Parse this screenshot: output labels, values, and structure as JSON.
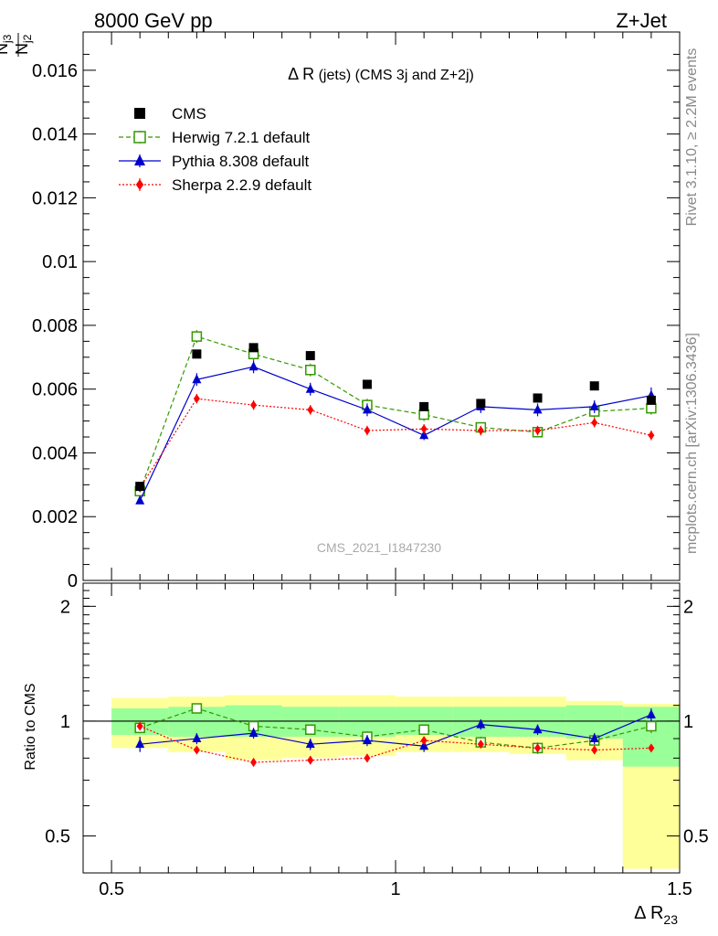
{
  "header": {
    "left": "8000 GeV pp",
    "right": "Z+Jet"
  },
  "ylabel_top": {
    "num": "N",
    "num_sub": "j3",
    "den": "N",
    "den_sub": "j2"
  },
  "ylabel_bottom": "Ratio to CMS",
  "xlabel": {
    "main": "Δ R",
    "sub": "23"
  },
  "plot_title": {
    "delta": "Δ R",
    "rest": " (jets) (CMS 3j and Z+2j)"
  },
  "watermark": "CMS_2021_I1847230",
  "side_text": {
    "rivet": "Rivet 3.1.10, ≥ 2.2M events",
    "mcplots": "mcplots.cern.ch [arXiv:1306.3436]"
  },
  "chart_data": {
    "type": "scatter",
    "x": [
      0.55,
      0.65,
      0.75,
      0.85,
      0.95,
      1.05,
      1.15,
      1.25,
      1.35,
      1.45
    ],
    "xlim": [
      0.45,
      1.5
    ],
    "ylim_main": [
      0,
      0.0172
    ],
    "ylim_ratio": [
      0.4,
      2.3
    ],
    "ratio_log_scale": true,
    "xticks": [
      {
        "v": 0.5,
        "label": "0.5"
      },
      {
        "v": 1.0,
        "label": "1"
      },
      {
        "v": 1.5,
        "label": "1.5"
      }
    ],
    "yticks_main": [
      {
        "v": 0,
        "label": "0"
      },
      {
        "v": 0.002,
        "label": "0.002"
      },
      {
        "v": 0.004,
        "label": "0.004"
      },
      {
        "v": 0.006,
        "label": "0.006"
      },
      {
        "v": 0.008,
        "label": "0.008"
      },
      {
        "v": 0.01,
        "label": "0.01"
      },
      {
        "v": 0.012,
        "label": "0.012"
      },
      {
        "v": 0.014,
        "label": "0.014"
      },
      {
        "v": 0.016,
        "label": "0.016"
      }
    ],
    "yticks_ratio": [
      {
        "v": 0.5,
        "label": "0.5"
      },
      {
        "v": 1,
        "label": "1"
      },
      {
        "v": 2,
        "label": "2"
      }
    ],
    "data_series": {
      "name": "CMS",
      "values": [
        0.00295,
        0.0071,
        0.0073,
        0.00705,
        0.00615,
        0.00545,
        0.00555,
        0.00572,
        0.0061,
        0.00565
      ]
    },
    "mc_series": [
      {
        "name": "Herwig 7.2.1 default",
        "color": "#339900",
        "marker": "open-square",
        "line": "dashed",
        "values": [
          0.0028,
          0.00765,
          0.0071,
          0.0066,
          0.0055,
          0.0052,
          0.0048,
          0.00465,
          0.0053,
          0.0054
        ],
        "errors": [
          0.0001,
          0.0002,
          0.0002,
          0.0002,
          0.0002,
          0.0002,
          0.00015,
          0.00015,
          0.0002,
          0.0002
        ],
        "ratio": [
          0.96,
          1.08,
          0.97,
          0.95,
          0.91,
          0.95,
          0.88,
          0.85,
          0.89,
          0.97
        ],
        "ratio_errors": [
          0.03,
          0.03,
          0.03,
          0.03,
          0.03,
          0.03,
          0.03,
          0.03,
          0.03,
          0.04
        ]
      },
      {
        "name": "Pythia 8.308 default",
        "color": "#0000cc",
        "marker": "filled-triangle",
        "line": "solid",
        "values": [
          0.0025,
          0.0063,
          0.0067,
          0.006,
          0.00535,
          0.00455,
          0.00545,
          0.00535,
          0.00545,
          0.0058
        ],
        "errors": [
          0.0001,
          0.0002,
          0.0002,
          0.0002,
          0.0002,
          0.00015,
          0.0002,
          0.0002,
          0.0002,
          0.00025
        ],
        "ratio": [
          0.87,
          0.9,
          0.93,
          0.87,
          0.89,
          0.86,
          0.98,
          0.95,
          0.9,
          1.04
        ],
        "ratio_errors": [
          0.04,
          0.03,
          0.03,
          0.03,
          0.03,
          0.03,
          0.03,
          0.03,
          0.03,
          0.04
        ]
      },
      {
        "name": "Sherpa 2.2.9 default",
        "color": "#ff0000",
        "marker": "filled-diamond",
        "line": "dotted",
        "values": [
          0.0029,
          0.0057,
          0.0055,
          0.00535,
          0.0047,
          0.00475,
          0.0047,
          0.0047,
          0.00495,
          0.00455
        ],
        "errors": [
          0.0001,
          0.00015,
          0.00015,
          0.00015,
          0.00015,
          0.00015,
          0.00015,
          0.00015,
          0.00015,
          0.00015
        ],
        "ratio": [
          0.97,
          0.84,
          0.78,
          0.79,
          0.8,
          0.89,
          0.87,
          0.85,
          0.84,
          0.85
        ],
        "ratio_errors": [
          0.02,
          0.02,
          0.02,
          0.02,
          0.02,
          0.02,
          0.02,
          0.02,
          0.02,
          0.02
        ]
      }
    ],
    "ratio_bands": [
      {
        "x0": 0.5,
        "x1": 0.6,
        "green": [
          0.92,
          1.08
        ],
        "yellow": [
          0.85,
          1.15
        ]
      },
      {
        "x0": 0.6,
        "x1": 0.7,
        "green": [
          0.91,
          1.09
        ],
        "yellow": [
          0.83,
          1.16
        ]
      },
      {
        "x0": 0.7,
        "x1": 0.8,
        "green": [
          0.91,
          1.1
        ],
        "yellow": [
          0.79,
          1.17
        ]
      },
      {
        "x0": 0.8,
        "x1": 0.9,
        "green": [
          0.91,
          1.09
        ],
        "yellow": [
          0.8,
          1.17
        ]
      },
      {
        "x0": 0.9,
        "x1": 1.0,
        "green": [
          0.91,
          1.09
        ],
        "yellow": [
          0.81,
          1.17
        ]
      },
      {
        "x0": 1.0,
        "x1": 1.1,
        "green": [
          0.92,
          1.09
        ],
        "yellow": [
          0.83,
          1.16
        ]
      },
      {
        "x0": 1.1,
        "x1": 1.2,
        "green": [
          0.91,
          1.09
        ],
        "yellow": [
          0.83,
          1.16
        ]
      },
      {
        "x0": 1.2,
        "x1": 1.3,
        "green": [
          0.91,
          1.09
        ],
        "yellow": [
          0.82,
          1.16
        ]
      },
      {
        "x0": 1.3,
        "x1": 1.4,
        "green": [
          0.9,
          1.1
        ],
        "yellow": [
          0.79,
          1.13
        ]
      },
      {
        "x0": 1.4,
        "x1": 1.5,
        "green": [
          0.76,
          1.09
        ],
        "yellow": [
          0.41,
          1.11
        ]
      }
    ],
    "colors": {
      "band_green": "#99ff99",
      "band_yellow": "#ffff99",
      "data_marker": "#000000"
    },
    "legend_position": "top-left"
  }
}
